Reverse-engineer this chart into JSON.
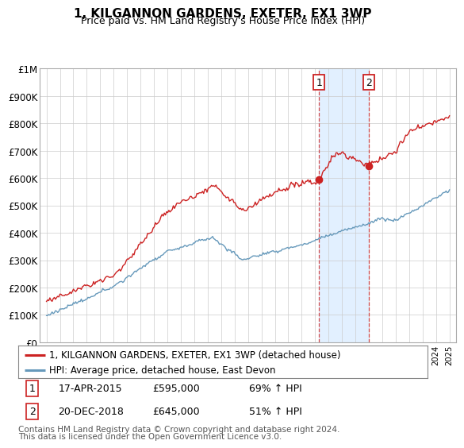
{
  "title": "1, KILGANNON GARDENS, EXETER, EX1 3WP",
  "subtitle": "Price paid vs. HM Land Registry's House Price Index (HPI)",
  "ylabel_ticks": [
    "£0",
    "£100K",
    "£200K",
    "£300K",
    "£400K",
    "£500K",
    "£600K",
    "£700K",
    "£800K",
    "£900K",
    "£1M"
  ],
  "ytick_values": [
    0,
    100000,
    200000,
    300000,
    400000,
    500000,
    600000,
    700000,
    800000,
    900000,
    1000000
  ],
  "ylim": [
    0,
    1000000
  ],
  "xlim_start": 1994.5,
  "xlim_end": 2025.5,
  "sale1_x": 2015.29,
  "sale1_y": 595000,
  "sale1_label": "1",
  "sale1_date": "17-APR-2015",
  "sale1_price": "£595,000",
  "sale1_hpi": "69% ↑ HPI",
  "sale2_x": 2018.97,
  "sale2_y": 645000,
  "sale2_label": "2",
  "sale2_date": "20-DEC-2018",
  "sale2_price": "£645,000",
  "sale2_hpi": "51% ↑ HPI",
  "legend_line1": "1, KILGANNON GARDENS, EXETER, EX1 3WP (detached house)",
  "legend_line2": "HPI: Average price, detached house, East Devon",
  "footer_line1": "Contains HM Land Registry data © Crown copyright and database right 2024.",
  "footer_line2": "This data is licensed under the Open Government Licence v3.0.",
  "red_color": "#cc2222",
  "blue_color": "#6699bb",
  "shading_color": "#ddeeff",
  "grid_color": "#cccccc",
  "title_fontsize": 11,
  "subtitle_fontsize": 9,
  "axis_fontsize": 8.5,
  "legend_fontsize": 8.5,
  "footer_fontsize": 7.5
}
